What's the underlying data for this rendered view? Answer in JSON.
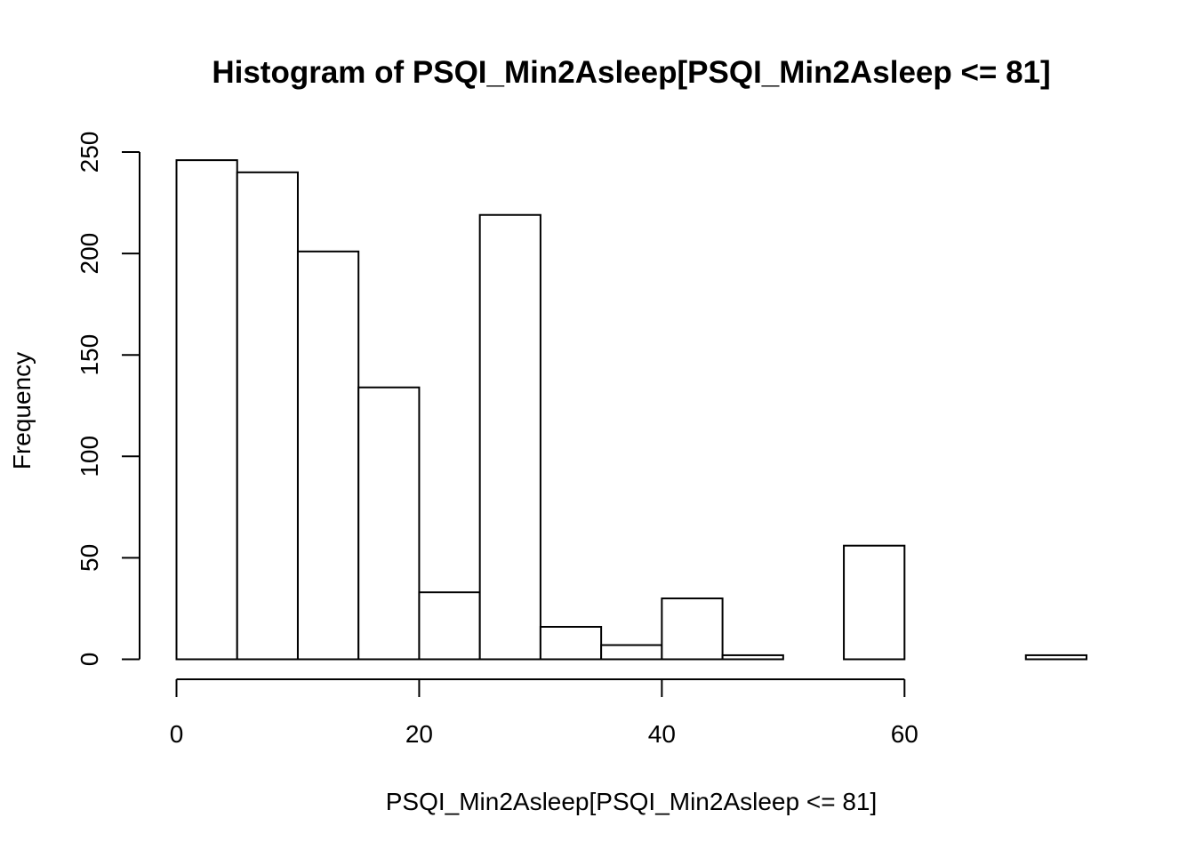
{
  "chart_data": {
    "type": "bar",
    "subtype": "histogram",
    "title": "Histogram of PSQI_Min2Asleep[PSQI_Min2Asleep <= 81]",
    "xlabel": "PSQI_Min2Asleep[PSQI_Min2Asleep <= 81]",
    "ylabel": "Frequency",
    "bin_edges": [
      0,
      5,
      10,
      15,
      20,
      25,
      30,
      35,
      40,
      45,
      50,
      55,
      60,
      65,
      70,
      75
    ],
    "counts": [
      246,
      240,
      201,
      134,
      33,
      219,
      16,
      7,
      30,
      2,
      0,
      56,
      0,
      0,
      2
    ],
    "xlim": [
      0,
      75
    ],
    "ylim": [
      0,
      250
    ],
    "x_ticks": [
      0,
      20,
      40,
      60
    ],
    "y_ticks": [
      0,
      50,
      100,
      150,
      200,
      250
    ],
    "grid": false,
    "legend": "none",
    "colors": {
      "bar_fill": "#ffffff",
      "bar_stroke": "#000000",
      "axis": "#000000"
    }
  }
}
